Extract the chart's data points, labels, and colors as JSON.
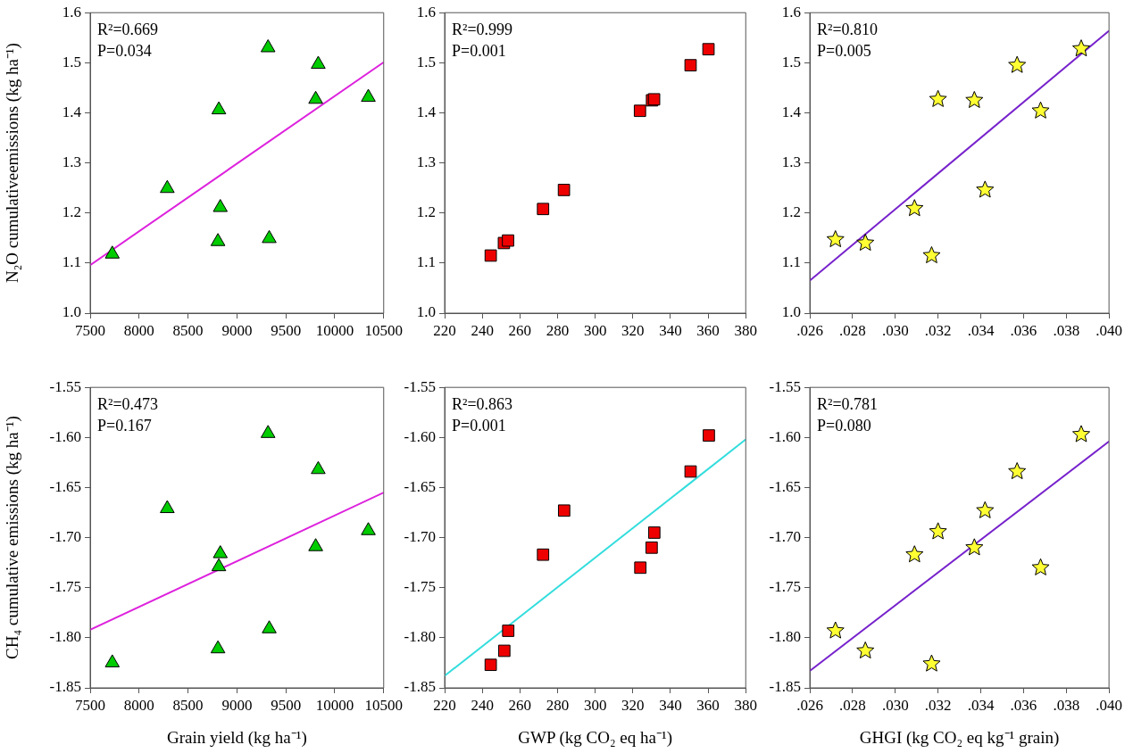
{
  "chart_data": [
    {
      "type": "scatter",
      "ylabel": "N₂O cumulativeemissions (kg ha⁻¹)",
      "annotations": [
        "R²=0.669",
        "P=0.034"
      ],
      "series": [
        {
          "type": "scatter",
          "color": "#00cc00",
          "marker": "triangle",
          "x": [
            7726,
            8288,
            8815,
            8830,
            8806,
            9318,
            9330,
            9831,
            9805,
            10343
          ],
          "values": [
            1.118,
            1.249,
            1.406,
            1.211,
            1.143,
            1.53,
            1.149,
            1.497,
            1.427,
            1.431
          ]
        },
        {
          "type": "line",
          "color": "#dd22dd",
          "marker": "none",
          "x": [
            7500,
            10500
          ],
          "values": [
            1.096,
            1.501
          ]
        }
      ],
      "xlim": [
        7500,
        10500
      ],
      "xticks": [
        7500,
        8000,
        8500,
        9000,
        9500,
        10000,
        10500
      ],
      "ylim": [
        1.0,
        1.6
      ],
      "yticks": [
        {
          "value": 1,
          "label": "1.0"
        },
        1.1,
        1.2,
        1.3,
        1.4,
        1.5,
        1.6
      ],
      "grid": false,
      "legend": false
    },
    {
      "type": "scatter",
      "annotations": [
        "R²=0.999",
        "P=0.001"
      ],
      "series": [
        {
          "type": "scatter",
          "color": "#ee0000",
          "marker": "square",
          "x": [
            244.5,
            251.5,
            253.7,
            272.3,
            283.4,
            323.8,
            330.2,
            331.3,
            350.7,
            360.2
          ],
          "values": [
            1.115,
            1.14,
            1.145,
            1.208,
            1.246,
            1.404,
            1.425,
            1.427,
            1.495,
            1.527
          ]
        }
      ],
      "xlim": [
        220,
        380
      ],
      "xticks": [
        220,
        240,
        260,
        280,
        300,
        320,
        340,
        360,
        380
      ],
      "ylim": [
        1.0,
        1.6
      ],
      "yticks": [
        {
          "value": 1,
          "label": "1.0"
        },
        1.1,
        1.2,
        1.3,
        1.4,
        1.5,
        1.6
      ],
      "grid": false,
      "legend": false
    },
    {
      "type": "scatter",
      "annotations": [
        "R²=0.810",
        "P=0.005"
      ],
      "series": [
        {
          "type": "scatter",
          "color": "#ffff33",
          "marker": "star",
          "x": [
            0.0272,
            0.0286,
            0.0309,
            0.0317,
            0.032,
            0.0337,
            0.0342,
            0.0357,
            0.0368,
            0.0387
          ],
          "values": [
            1.147,
            1.14,
            1.209,
            1.115,
            1.427,
            1.425,
            1.246,
            1.495,
            1.404,
            1.528
          ]
        },
        {
          "type": "line",
          "color": "#7722cc",
          "marker": "none",
          "x": [
            0.026,
            0.04
          ],
          "values": [
            1.065,
            1.564
          ]
        }
      ],
      "xlim": [
        0.026,
        0.04
      ],
      "xticks": [
        {
          "value": 0.026,
          "label": ".026"
        },
        {
          "value": 0.028,
          "label": ".028"
        },
        {
          "value": 0.03,
          "label": ".030"
        },
        {
          "value": 0.032,
          "label": ".032"
        },
        {
          "value": 0.034,
          "label": ".034"
        },
        {
          "value": 0.036,
          "label": ".036"
        },
        {
          "value": 0.038,
          "label": ".038"
        },
        {
          "value": 0.04,
          "label": ".040"
        }
      ],
      "ylim": [
        1.0,
        1.6
      ],
      "yticks": [
        {
          "value": 1,
          "label": "1.0"
        },
        1.1,
        1.2,
        1.3,
        1.4,
        1.5,
        1.6
      ],
      "grid": false,
      "legend": false
    },
    {
      "type": "scatter",
      "xlabel": "Grain yield (kg ha⁻¹)",
      "ylabel": "CH₄ cumulative emissions (kg ha⁻¹)",
      "annotations": [
        "R²=0.473",
        "P=0.167"
      ],
      "series": [
        {
          "type": "scatter",
          "color": "#00cc00",
          "marker": "triangle",
          "x": [
            7726,
            8288,
            8830,
            8815,
            8806,
            9318,
            9330,
            9831,
            9805,
            10343
          ],
          "values": [
            -1.825,
            -1.671,
            -1.716,
            -1.729,
            -1.811,
            -1.596,
            -1.791,
            -1.632,
            -1.709,
            -1.693
          ]
        },
        {
          "type": "line",
          "color": "#dd22dd",
          "marker": "none",
          "x": [
            7500,
            10500
          ],
          "values": [
            -1.792,
            -1.655
          ]
        }
      ],
      "xlim": [
        7500,
        10500
      ],
      "xticks": [
        7500,
        8000,
        8500,
        9000,
        9500,
        10000,
        10500
      ],
      "ylim": [
        -1.85,
        -1.55
      ],
      "yticks": [
        -1.85,
        {
          "value": -1.8,
          "label": "-1.80"
        },
        -1.75,
        {
          "value": -1.7,
          "label": "-1.70"
        },
        -1.65,
        {
          "value": -1.6,
          "label": "-1.60"
        },
        -1.55
      ],
      "grid": false,
      "legend": false
    },
    {
      "type": "scatter",
      "xlabel": "GWP (kg CO₂ eq ha⁻¹)",
      "annotations": [
        "R²=0.863",
        "P=0.001"
      ],
      "series": [
        {
          "type": "scatter",
          "color": "#ee0000",
          "marker": "square",
          "x": [
            244.5,
            251.7,
            253.8,
            272.3,
            283.5,
            324.0,
            330.0,
            331.4,
            350.7,
            360.4
          ],
          "values": [
            -1.827,
            -1.813,
            -1.793,
            -1.717,
            -1.673,
            -1.73,
            -1.71,
            -1.695,
            -1.634,
            -1.598
          ]
        },
        {
          "type": "line",
          "color": "#33dddd",
          "marker": "none",
          "x": [
            220,
            380
          ],
          "values": [
            -1.838,
            -1.602
          ]
        }
      ],
      "xlim": [
        220,
        380
      ],
      "xticks": [
        220,
        240,
        260,
        280,
        300,
        320,
        340,
        360,
        380
      ],
      "ylim": [
        -1.85,
        -1.55
      ],
      "yticks": [
        -1.85,
        {
          "value": -1.8,
          "label": "-1.80"
        },
        -1.75,
        {
          "value": -1.7,
          "label": "-1.70"
        },
        -1.65,
        {
          "value": -1.6,
          "label": "-1.60"
        },
        -1.55
      ],
      "grid": false,
      "legend": false
    },
    {
      "type": "scatter",
      "xlabel": "GHGI (kg CO₂ eq kg⁻¹ grain)",
      "annotations": [
        "R²=0.781",
        "P=0.080"
      ],
      "series": [
        {
          "type": "scatter",
          "color": "#ffff33",
          "marker": "star",
          "x": [
            0.0272,
            0.0286,
            0.0309,
            0.0317,
            0.032,
            0.0337,
            0.0342,
            0.0357,
            0.0368,
            0.0387
          ],
          "values": [
            -1.793,
            -1.813,
            -1.717,
            -1.826,
            -1.694,
            -1.71,
            -1.673,
            -1.634,
            -1.73,
            -1.597
          ]
        },
        {
          "type": "line",
          "color": "#7722cc",
          "marker": "none",
          "x": [
            0.026,
            0.04
          ],
          "values": [
            -1.833,
            -1.604
          ]
        }
      ],
      "xlim": [
        0.026,
        0.04
      ],
      "xticks": [
        {
          "value": 0.026,
          "label": ".026"
        },
        {
          "value": 0.028,
          "label": ".028"
        },
        {
          "value": 0.03,
          "label": ".030"
        },
        {
          "value": 0.032,
          "label": ".032"
        },
        {
          "value": 0.034,
          "label": ".034"
        },
        {
          "value": 0.036,
          "label": ".036"
        },
        {
          "value": 0.038,
          "label": ".038"
        },
        {
          "value": 0.04,
          "label": ".040"
        }
      ],
      "ylim": [
        -1.85,
        -1.55
      ],
      "yticks": [
        -1.85,
        {
          "value": -1.8,
          "label": "-1.80"
        },
        -1.75,
        {
          "value": -1.7,
          "label": "-1.70"
        },
        -1.65,
        {
          "value": -1.6,
          "label": "-1.60"
        },
        -1.55
      ],
      "grid": false,
      "legend": false
    }
  ]
}
